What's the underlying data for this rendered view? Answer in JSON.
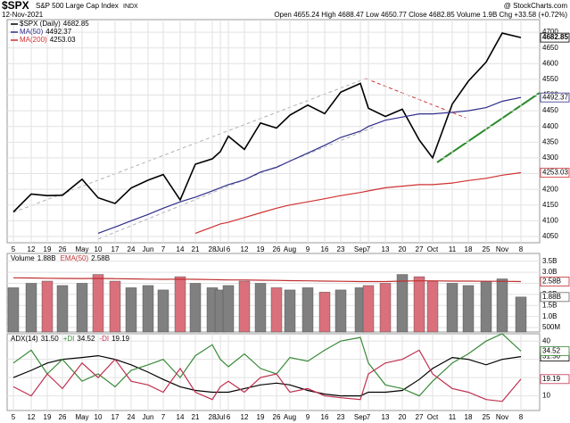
{
  "chart_data": [
    {
      "type": "line",
      "title": "$SPX",
      "subtitle": "S&P 500 Large Cap Index",
      "exchange": "INDX",
      "source": "@ StockCharts.com",
      "date": "12-Nov-2021",
      "quote": "Open 4655.24 High 4688.47 Low 4650.77 Close 4682.85 Volume 1.9B Chg +33.58 (+0.72%)",
      "categories": [
        "5",
        "12",
        "19",
        "26",
        "May",
        "10",
        "17",
        "24",
        "Jun",
        "7",
        "14",
        "21",
        "28",
        "Jul",
        "6",
        "12",
        "19",
        "26",
        "Aug",
        "9",
        "16",
        "23",
        "Sep",
        "7",
        "13",
        "20",
        "27",
        "Oct",
        "11",
        "18",
        "25",
        "Nov",
        "8"
      ],
      "ylim": [
        4030,
        4740
      ],
      "yticks": [
        4050,
        4100,
        4150,
        4200,
        4250,
        4300,
        4350,
        4400,
        4450,
        4500,
        4550,
        4600,
        4650,
        4700
      ],
      "grid": true,
      "series": [
        {
          "name": "$SPX (Daily)",
          "color": "#000000",
          "last_label": 4682.85,
          "values": [
            4128,
            4185,
            4180,
            4181,
            4232,
            4173,
            4155,
            4204,
            4229,
            4247,
            4166,
            4280,
            4297,
            4320,
            4369,
            4327,
            4411,
            4395,
            4436,
            4468,
            4441,
            4509,
            4537,
            4458,
            4432,
            4455,
            4357,
            4300,
            4471,
            4544,
            4605,
            4697,
            4682.85
          ]
        },
        {
          "name": "MA(50)",
          "color": "#2e2e8a",
          "last_label": 4492.37,
          "values": [
            null,
            null,
            null,
            null,
            null,
            4060,
            4080,
            4100,
            4120,
            4140,
            4160,
            4175,
            4195,
            4205,
            4215,
            4230,
            4255,
            4270,
            4290,
            4315,
            4340,
            4365,
            4385,
            4400,
            4420,
            4430,
            4440,
            4440,
            4445,
            4450,
            4460,
            4480,
            4492.37
          ]
        },
        {
          "name": "MA(200)",
          "color": "#d03030",
          "last_label": 4253.03,
          "values": [
            null,
            null,
            null,
            null,
            null,
            null,
            null,
            null,
            null,
            null,
            null,
            4060,
            4080,
            4090,
            4095,
            4110,
            4125,
            4140,
            4150,
            4160,
            4170,
            4180,
            4190,
            4195,
            4205,
            4210,
            4215,
            4215,
            4220,
            4228,
            4235,
            4245,
            4253.03
          ]
        }
      ]
    },
    {
      "type": "bar",
      "ylim": [
        300000000,
        3850000000
      ],
      "yticks": [
        {
          "value": 500000000,
          "label": "500M"
        },
        {
          "value": 1000000000,
          "label": "1.0B"
        },
        {
          "value": 1500000000,
          "label": "1.5B"
        },
        {
          "value": 2000000000,
          "label": "2.0B"
        },
        {
          "value": 2500000000,
          "label": "2.5B"
        },
        {
          "value": 3000000000,
          "label": "3.0B"
        },
        {
          "value": 3500000000,
          "label": "3.5B"
        }
      ],
      "grid": true,
      "series": [
        {
          "name": "Volume",
          "last_label": "1.88B",
          "values": [
            2300000000,
            2500000000,
            2600000000,
            2400000000,
            2500000000,
            2900000000,
            2600000000,
            2300000000,
            2400000000,
            2200000000,
            2800000000,
            2500000000,
            2300000000,
            2200000000,
            2400000000,
            2600000000,
            2500000000,
            2300000000,
            2200000000,
            2300000000,
            2100000000,
            2200000000,
            2300000000,
            2400000000,
            2500000000,
            2900000000,
            2800000000,
            2600000000,
            2500000000,
            2400000000,
            2600000000,
            2700000000,
            1880000000
          ],
          "colors": [
            "#808080",
            "#808080",
            "#d9707c",
            "#808080",
            "#808080",
            "#d9707c",
            "#d9707c",
            "#808080",
            "#808080",
            "#808080",
            "#d9707c",
            "#808080",
            "#808080",
            "#808080",
            "#808080",
            "#d9707c",
            "#808080",
            "#d9707c",
            "#808080",
            "#808080",
            "#d9707c",
            "#808080",
            "#808080",
            "#d9707c",
            "#d9707c",
            "#808080",
            "#d9707c",
            "#d9707c",
            "#808080",
            "#808080",
            "#808080",
            "#808080",
            "#808080"
          ]
        },
        {
          "name": "EMA(50)",
          "color": "#c03030",
          "last_label": "2.58B",
          "values": [
            2750000000,
            2740000000,
            2730000000,
            2720000000,
            2715000000,
            2720000000,
            2710000000,
            2700000000,
            2690000000,
            2680000000,
            2690000000,
            2680000000,
            2670000000,
            2660000000,
            2650000000,
            2650000000,
            2640000000,
            2630000000,
            2620000000,
            2610000000,
            2600000000,
            2590000000,
            2580000000,
            2580000000,
            2580000000,
            2600000000,
            2610000000,
            2610000000,
            2600000000,
            2600000000,
            2590000000,
            2590000000,
            2580000000
          ]
        }
      ]
    },
    {
      "type": "line",
      "ylim": [
        2,
        44
      ],
      "yticks": [
        10,
        20,
        30,
        40
      ],
      "grid": true,
      "series": [
        {
          "name": "ADX(14)",
          "color": "#000000",
          "last_label": "31.50",
          "values": [
            20,
            24,
            28,
            30,
            31,
            32,
            30,
            27,
            23,
            19,
            15,
            13,
            12,
            12,
            12,
            14,
            16,
            17,
            16,
            13,
            11,
            10,
            10,
            12,
            12,
            13,
            19,
            25,
            31,
            30,
            27,
            30,
            31.5
          ]
        },
        {
          "name": "+DI",
          "color": "#3a8a3a",
          "last_label": "34.52",
          "values": [
            28,
            35,
            22,
            30,
            18,
            22,
            15,
            24,
            27,
            30,
            20,
            32,
            38,
            30,
            26,
            33,
            25,
            22,
            31,
            29,
            35,
            40,
            42,
            28,
            16,
            14,
            10,
            18,
            28,
            33,
            40,
            44,
            34.52
          ]
        },
        {
          "name": "-DI",
          "color": "#c03050",
          "last_label": "19.19",
          "values": [
            15,
            10,
            22,
            14,
            28,
            20,
            30,
            18,
            16,
            12,
            25,
            12,
            8,
            15,
            18,
            12,
            20,
            22,
            12,
            14,
            10,
            9,
            8,
            22,
            28,
            30,
            35,
            22,
            14,
            12,
            8,
            7,
            19.19
          ]
        }
      ]
    }
  ]
}
